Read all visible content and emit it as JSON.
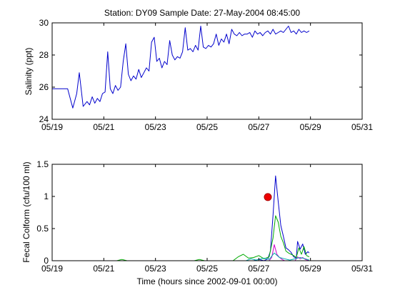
{
  "figure": {
    "title": "Station: DY09  Sample Date: 27-May-2004 08:45:00",
    "x_axis_label": "Time (hours since 2002-09-01 00:00)"
  },
  "colors": {
    "salinity": "#0000cc",
    "fc_blue": "#0000cc",
    "fc_green": "#00aa00",
    "fc_magenta": "#cc00cc",
    "fc_cyan": "#00aaaa",
    "sample_marker": "#ee0000"
  },
  "chart_data": [
    {
      "type": "line",
      "ylabel": "Salinity (ppt)",
      "x_ticks": [
        "05/19",
        "05/21",
        "05/23",
        "05/25",
        "05/27",
        "05/29",
        "05/31"
      ],
      "xlim": [
        0,
        12
      ],
      "y_ticks": [
        "24",
        "26",
        "28",
        "30"
      ],
      "y_tick_values": [
        24,
        26,
        28,
        30
      ],
      "ylim": [
        24,
        30
      ],
      "grid": false,
      "series": [
        {
          "x": [
            0.0,
            0.4,
            0.6,
            0.8,
            0.95,
            1.05,
            1.2,
            1.35,
            1.45,
            1.55,
            1.65,
            1.75,
            1.85,
            1.95,
            2.05,
            2.15,
            2.25,
            2.35,
            2.45,
            2.55,
            2.65,
            2.75,
            2.85,
            2.95,
            3.05,
            3.15,
            3.25,
            3.35,
            3.45,
            3.55,
            3.65,
            3.75,
            3.85,
            3.95,
            4.05,
            4.15,
            4.25,
            4.35,
            4.45,
            4.55,
            4.65,
            4.75,
            4.85,
            4.95,
            5.05,
            5.15,
            5.25,
            5.35,
            5.45,
            5.55,
            5.65,
            5.75,
            5.85,
            5.95,
            6.05,
            6.15,
            6.25,
            6.35,
            6.45,
            6.55,
            6.65,
            6.75,
            6.85,
            6.95,
            7.05,
            7.15,
            7.25,
            7.35,
            7.45,
            7.55,
            7.65,
            7.75,
            7.85,
            7.95,
            8.05,
            8.15,
            8.25,
            8.35,
            8.45,
            8.55,
            8.65,
            8.75,
            8.85,
            8.95,
            9.05,
            9.15,
            9.25,
            9.35,
            9.45,
            9.55,
            9.65,
            9.75,
            9.85,
            9.95
          ],
          "y": [
            25.9,
            25.9,
            25.9,
            24.7,
            25.6,
            26.9,
            24.8,
            25.1,
            24.9,
            25.4,
            25.0,
            25.3,
            25.1,
            25.6,
            25.7,
            28.2,
            25.9,
            25.6,
            26.1,
            25.8,
            26.0,
            27.6,
            28.7,
            26.8,
            26.4,
            26.7,
            26.5,
            27.1,
            26.6,
            26.9,
            27.2,
            27.0,
            28.8,
            29.1,
            27.6,
            27.8,
            27.2,
            27.6,
            27.4,
            28.9,
            28.0,
            27.7,
            27.9,
            27.8,
            28.2,
            29.7,
            28.3,
            28.4,
            28.2,
            28.6,
            28.3,
            29.8,
            28.5,
            28.4,
            28.6,
            28.5,
            28.7,
            29.3,
            28.6,
            29.0,
            28.8,
            29.3,
            28.7,
            29.6,
            29.3,
            29.2,
            29.4,
            29.2,
            29.3,
            29.3,
            29.4,
            29.1,
            29.5,
            29.3,
            29.4,
            29.2,
            29.4,
            29.5,
            29.3,
            29.6,
            29.3,
            29.4,
            29.5,
            29.4,
            29.6,
            29.8,
            29.4,
            29.5,
            29.3,
            29.6,
            29.4,
            29.5,
            29.4,
            29.5
          ]
        }
      ]
    },
    {
      "type": "line",
      "ylabel": "Fecal Colform (cfu/100 ml)",
      "x_ticks": [
        "05/19",
        "05/21",
        "05/23",
        "05/25",
        "05/27",
        "05/29",
        "05/31"
      ],
      "xlim": [
        0,
        12
      ],
      "y_ticks": [
        "0",
        "0.5",
        "1",
        "1.5"
      ],
      "y_tick_values": [
        0,
        0.5,
        1,
        1.5
      ],
      "ylim": [
        0,
        1.5
      ],
      "grid": false,
      "series": [
        {
          "color_key": "fc_blue",
          "x": [
            0.0,
            7.8,
            8.0,
            8.2,
            8.35,
            8.45,
            8.55,
            8.65,
            8.75,
            8.85,
            8.95,
            9.05,
            9.15,
            9.25,
            9.35,
            9.45,
            9.5,
            9.6,
            9.7,
            9.8,
            9.9,
            9.95
          ],
          "y": [
            0.0,
            0.0,
            0.02,
            0.0,
            0.03,
            0.15,
            0.7,
            1.32,
            0.92,
            0.55,
            0.38,
            0.2,
            0.17,
            0.13,
            0.06,
            0.04,
            0.3,
            0.18,
            0.26,
            0.1,
            0.14,
            0.12
          ]
        },
        {
          "color_key": "fc_green",
          "x": [
            0.0,
            2.5,
            2.7,
            2.9,
            5.5,
            5.7,
            5.9,
            7.0,
            7.2,
            7.4,
            7.6,
            7.8,
            8.0,
            8.2,
            8.4,
            8.55,
            8.65,
            8.75,
            8.85,
            8.95,
            9.05,
            9.15,
            9.25,
            9.35,
            9.45,
            9.55,
            9.65,
            9.75,
            9.85,
            9.95
          ],
          "y": [
            0.0,
            0.0,
            0.02,
            0.0,
            0.0,
            0.02,
            0.0,
            0.0,
            0.06,
            0.1,
            0.04,
            0.05,
            0.08,
            0.03,
            0.06,
            0.35,
            0.7,
            0.6,
            0.38,
            0.28,
            0.15,
            0.12,
            0.1,
            0.08,
            0.05,
            0.2,
            0.1,
            0.22,
            0.08,
            0.06
          ]
        },
        {
          "color_key": "fc_magenta",
          "x": [
            0.0,
            8.4,
            8.5,
            8.6,
            8.7,
            8.8,
            8.9,
            9.0,
            9.4,
            9.5,
            9.6,
            9.7,
            9.8,
            9.95
          ],
          "y": [
            0.0,
            0.0,
            0.05,
            0.25,
            0.1,
            0.05,
            0.02,
            0.0,
            0.0,
            0.06,
            0.03,
            0.05,
            0.02,
            0.0
          ]
        },
        {
          "color_key": "fc_cyan",
          "x": [
            0.0,
            7.5,
            7.7,
            7.9,
            8.2,
            8.4,
            8.6,
            8.8,
            9.0,
            9.2,
            9.6,
            9.8,
            9.95
          ],
          "y": [
            0.0,
            0.0,
            0.03,
            0.01,
            0.04,
            0.02,
            0.12,
            0.05,
            0.03,
            0.01,
            0.05,
            0.03,
            0.01
          ]
        }
      ],
      "markers": [
        {
          "color_key": "sample_marker",
          "x": 8.35,
          "y": 0.99
        }
      ]
    }
  ]
}
